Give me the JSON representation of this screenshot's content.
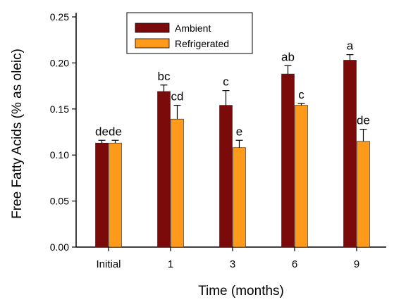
{
  "chart_data": {
    "type": "bar",
    "title": "",
    "xlabel": "Time (months)",
    "ylabel": "Free Fatty Acids (% as oleic)",
    "ylim": [
      0,
      0.25
    ],
    "yticks": [
      "0.00",
      "0.05",
      "0.10",
      "0.15",
      "0.20",
      "0.25"
    ],
    "categories": [
      "Initial",
      "1",
      "3",
      "6",
      "9"
    ],
    "legend_position": "top-center",
    "grid": false,
    "error_bars": true,
    "series": [
      {
        "name": "Ambient",
        "color": "#7b0a0a",
        "values": [
          0.113,
          0.169,
          0.154,
          0.188,
          0.203
        ],
        "errors": [
          0.003,
          0.007,
          0.016,
          0.009,
          0.006
        ],
        "labels": [
          "de",
          "bc",
          "c",
          "ab",
          "a"
        ]
      },
      {
        "name": "Refrigerated",
        "color": "#ff9a1a",
        "values": [
          0.113,
          0.139,
          0.108,
          0.154,
          0.115
        ],
        "errors": [
          0.003,
          0.015,
          0.008,
          0.002,
          0.013
        ],
        "labels": [
          "de",
          "cd",
          "e",
          "c",
          "de"
        ]
      }
    ]
  }
}
